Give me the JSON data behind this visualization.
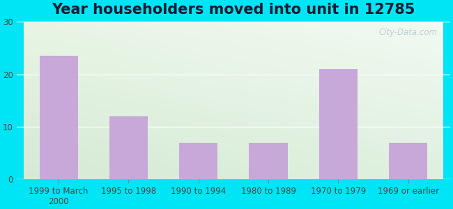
{
  "title": "Year householders moved into unit in 12785",
  "categories": [
    "1999 to March\n2000",
    "1995 to 1998",
    "1990 to 1994",
    "1980 to 1989",
    "1970 to 1979",
    "1969 or earlier"
  ],
  "values": [
    23.5,
    12.0,
    7.0,
    7.0,
    21.0,
    7.0
  ],
  "ylim": [
    0,
    30
  ],
  "yticks": [
    0,
    10,
    20,
    30
  ],
  "bar_color": "#c8a8d8",
  "background_outer": "#00e5f5",
  "grad_top_left": "#e8f5e8",
  "grad_top_right": "#f0f8f5",
  "grad_bottom": "#d8edd8",
  "title_fontsize": 15,
  "tick_fontsize": 8.5,
  "watermark": "City-Data.com",
  "bar_width": 0.55
}
